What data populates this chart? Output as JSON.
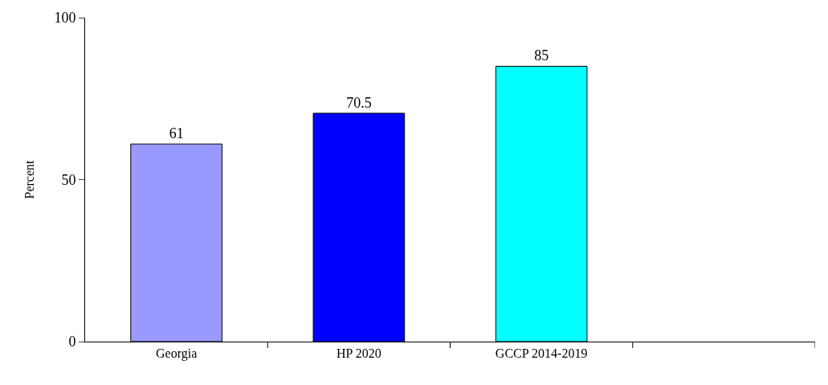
{
  "chart_data": {
    "type": "bar",
    "ylabel": "Percent",
    "categories": [
      "Georgia",
      "HP 2020",
      "GCCP 2014-2019",
      null
    ],
    "values": [
      61,
      70.5,
      85,
      null
    ],
    "colors": [
      "#9999ff",
      "#0000ff",
      "#00ffff",
      null
    ],
    "ylim": [
      0,
      100
    ],
    "yticks": [
      0,
      50,
      100
    ],
    "legend": false,
    "data_labels": true
  }
}
